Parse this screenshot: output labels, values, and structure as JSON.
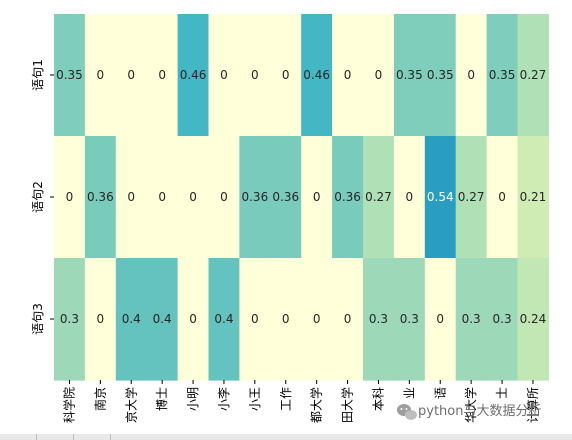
{
  "chart_data": {
    "type": "heatmap",
    "rows": [
      "语句1",
      "语句2",
      "语句3"
    ],
    "columns": [
      "科学院",
      "南京",
      "京大学",
      "博士",
      "小明",
      "小李",
      "小王",
      "工作",
      "都大学",
      "田大学",
      "本科",
      "业",
      "语",
      "华大学",
      "士",
      "计算所"
    ],
    "values": [
      [
        "0.35",
        "0",
        "0",
        "0",
        "0.46",
        "0",
        "0",
        "0",
        "0.46",
        "0",
        "0",
        "0.35",
        "0.35",
        "0",
        "0.35",
        "0.27"
      ],
      [
        "0",
        "0.36",
        "0",
        "0",
        "0",
        "0",
        "0.36",
        "0.36",
        "0",
        "0.36",
        "0.27",
        "0",
        "0.54",
        "0.27",
        "0",
        "0.21"
      ],
      [
        "0.3",
        "0",
        "0.4",
        "0.4",
        "0",
        "0.4",
        "0",
        "0",
        "0",
        "0",
        "0.3",
        "0.3",
        "0",
        "0.3",
        "0.3",
        "0.24"
      ]
    ],
    "colormap": "YlGnBu",
    "color_range": [
      0,
      0.54
    ],
    "colorbar": "none"
  },
  "watermark": {
    "text": "python与大数据分析",
    "icon": "wechat-icon"
  }
}
